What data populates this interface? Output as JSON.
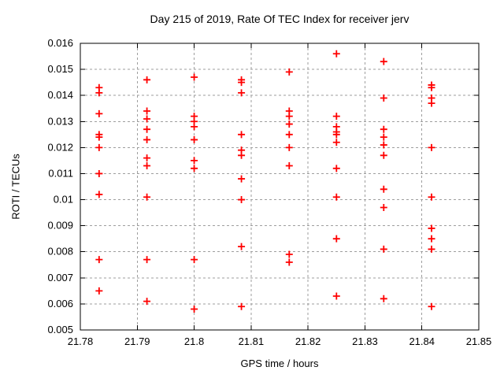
{
  "chart_data": {
    "type": "scatter",
    "title": "Day 215 of 2019, Rate Of TEC Index for receiver jerv",
    "xlabel": "GPS time / hours",
    "ylabel": "ROTI / TECUs",
    "xlim": [
      21.78,
      21.85
    ],
    "ylim": [
      0.005,
      0.016
    ],
    "grid": true,
    "legend": "none",
    "marker": {
      "symbol": "plus",
      "name": "plus-marker-icon"
    },
    "colors": {
      "marker": "#ff0000",
      "grid": "#9e9e9e",
      "frame": "#000000",
      "background": "#ffffff"
    },
    "x_ticks": [
      {
        "v": 21.78,
        "label": "21.78"
      },
      {
        "v": 21.79,
        "label": "21.79"
      },
      {
        "v": 21.8,
        "label": "21.8"
      },
      {
        "v": 21.81,
        "label": "21.81"
      },
      {
        "v": 21.82,
        "label": "21.82"
      },
      {
        "v": 21.83,
        "label": "21.83"
      },
      {
        "v": 21.84,
        "label": "21.84"
      },
      {
        "v": 21.85,
        "label": "21.85"
      }
    ],
    "y_ticks": [
      {
        "v": 0.005,
        "label": "0.005"
      },
      {
        "v": 0.006,
        "label": "0.006"
      },
      {
        "v": 0.007,
        "label": "0.007"
      },
      {
        "v": 0.008,
        "label": "0.008"
      },
      {
        "v": 0.009,
        "label": "0.009"
      },
      {
        "v": 0.01,
        "label": "0.01"
      },
      {
        "v": 0.011,
        "label": "0.011"
      },
      {
        "v": 0.012,
        "label": "0.012"
      },
      {
        "v": 0.013,
        "label": "0.013"
      },
      {
        "v": 0.014,
        "label": "0.014"
      },
      {
        "v": 0.015,
        "label": "0.015"
      },
      {
        "v": 0.016,
        "label": "0.016"
      }
    ],
    "points": [
      [
        21.7833,
        0.0143
      ],
      [
        21.7833,
        0.0141
      ],
      [
        21.7833,
        0.0133
      ],
      [
        21.7833,
        0.0125
      ],
      [
        21.7833,
        0.0124
      ],
      [
        21.7833,
        0.012
      ],
      [
        21.7833,
        0.011
      ],
      [
        21.7833,
        0.0102
      ],
      [
        21.7833,
        0.0077
      ],
      [
        21.7833,
        0.0065
      ],
      [
        21.7917,
        0.0146
      ],
      [
        21.7917,
        0.0134
      ],
      [
        21.7917,
        0.0131
      ],
      [
        21.7917,
        0.0127
      ],
      [
        21.7917,
        0.0123
      ],
      [
        21.7917,
        0.0116
      ],
      [
        21.7917,
        0.0113
      ],
      [
        21.7917,
        0.0101
      ],
      [
        21.7917,
        0.0077
      ],
      [
        21.7917,
        0.0061
      ],
      [
        21.8,
        0.0147
      ],
      [
        21.8,
        0.0132
      ],
      [
        21.8,
        0.013
      ],
      [
        21.8,
        0.0128
      ],
      [
        21.8,
        0.0123
      ],
      [
        21.8,
        0.0115
      ],
      [
        21.8,
        0.0112
      ],
      [
        21.8,
        0.0077
      ],
      [
        21.8,
        0.0058
      ],
      [
        21.8083,
        0.0146
      ],
      [
        21.8083,
        0.0145
      ],
      [
        21.8083,
        0.0141
      ],
      [
        21.8083,
        0.0125
      ],
      [
        21.8083,
        0.0119
      ],
      [
        21.8083,
        0.0117
      ],
      [
        21.8083,
        0.0108
      ],
      [
        21.8083,
        0.01
      ],
      [
        21.8083,
        0.0082
      ],
      [
        21.8083,
        0.0059
      ],
      [
        21.8167,
        0.0149
      ],
      [
        21.8167,
        0.0134
      ],
      [
        21.8167,
        0.0132
      ],
      [
        21.8167,
        0.0129
      ],
      [
        21.8167,
        0.0125
      ],
      [
        21.8167,
        0.012
      ],
      [
        21.8167,
        0.0113
      ],
      [
        21.8167,
        0.0079
      ],
      [
        21.8167,
        0.0076
      ],
      [
        21.825,
        0.0156
      ],
      [
        21.825,
        0.0132
      ],
      [
        21.825,
        0.0128
      ],
      [
        21.825,
        0.0126
      ],
      [
        21.825,
        0.0125
      ],
      [
        21.825,
        0.0122
      ],
      [
        21.825,
        0.0112
      ],
      [
        21.825,
        0.0101
      ],
      [
        21.825,
        0.0085
      ],
      [
        21.825,
        0.0063
      ],
      [
        21.8333,
        0.0153
      ],
      [
        21.8333,
        0.0139
      ],
      [
        21.8333,
        0.0127
      ],
      [
        21.8333,
        0.0124
      ],
      [
        21.8333,
        0.0121
      ],
      [
        21.8333,
        0.0117
      ],
      [
        21.8333,
        0.0104
      ],
      [
        21.8333,
        0.0097
      ],
      [
        21.8333,
        0.0081
      ],
      [
        21.8333,
        0.0062
      ],
      [
        21.8417,
        0.0144
      ],
      [
        21.8417,
        0.0143
      ],
      [
        21.8417,
        0.0139
      ],
      [
        21.8417,
        0.0137
      ],
      [
        21.8417,
        0.012
      ],
      [
        21.8417,
        0.0101
      ],
      [
        21.8417,
        0.0089
      ],
      [
        21.8417,
        0.0085
      ],
      [
        21.8417,
        0.0081
      ],
      [
        21.8417,
        0.0059
      ]
    ]
  }
}
